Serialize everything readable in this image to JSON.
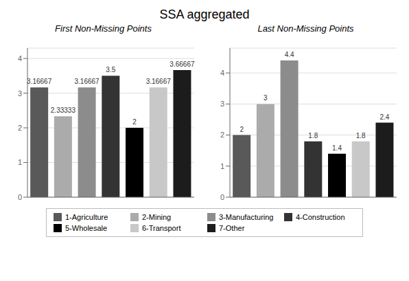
{
  "title": "SSA aggregated",
  "chart_data": [
    {
      "type": "bar",
      "title": "First Non-Missing Points",
      "categories": [
        "1-Agriculture",
        "2-Mining",
        "3-Manufacturing",
        "4-Construction",
        "5-Wholesale",
        "6-Transport",
        "7-Other"
      ],
      "values": [
        3.16667,
        2.33333,
        3.16667,
        3.5,
        2.0,
        3.16667,
        3.66667
      ],
      "colors": [
        "#595959",
        "#ababab",
        "#8c8c8c",
        "#333333",
        "#000000",
        "#c8c8c8",
        "#1c1c1c"
      ],
      "ylim": [
        0,
        4.3
      ],
      "yticks": [
        0,
        1,
        2,
        3,
        4
      ],
      "grid": true,
      "data_labels": true,
      "tick_labels": "y",
      "legend": "bottom"
    },
    {
      "type": "bar",
      "title": "Last Non-Missing Points",
      "categories": [
        "1-Agriculture",
        "2-Mining",
        "3-Manufacturing",
        "4-Construction",
        "5-Wholesale",
        "6-Transport",
        "7-Other"
      ],
      "values": [
        2.0,
        3.0,
        4.4,
        1.8,
        1.4,
        1.8,
        2.4
      ],
      "colors": [
        "#595959",
        "#ababab",
        "#8c8c8c",
        "#333333",
        "#000000",
        "#c8c8c8",
        "#1c1c1c"
      ],
      "ylim": [
        0,
        4.8
      ],
      "yticks": [
        0,
        1,
        2,
        3,
        4
      ],
      "grid": true,
      "data_labels": true,
      "tick_labels": "y",
      "legend": "bottom"
    }
  ]
}
